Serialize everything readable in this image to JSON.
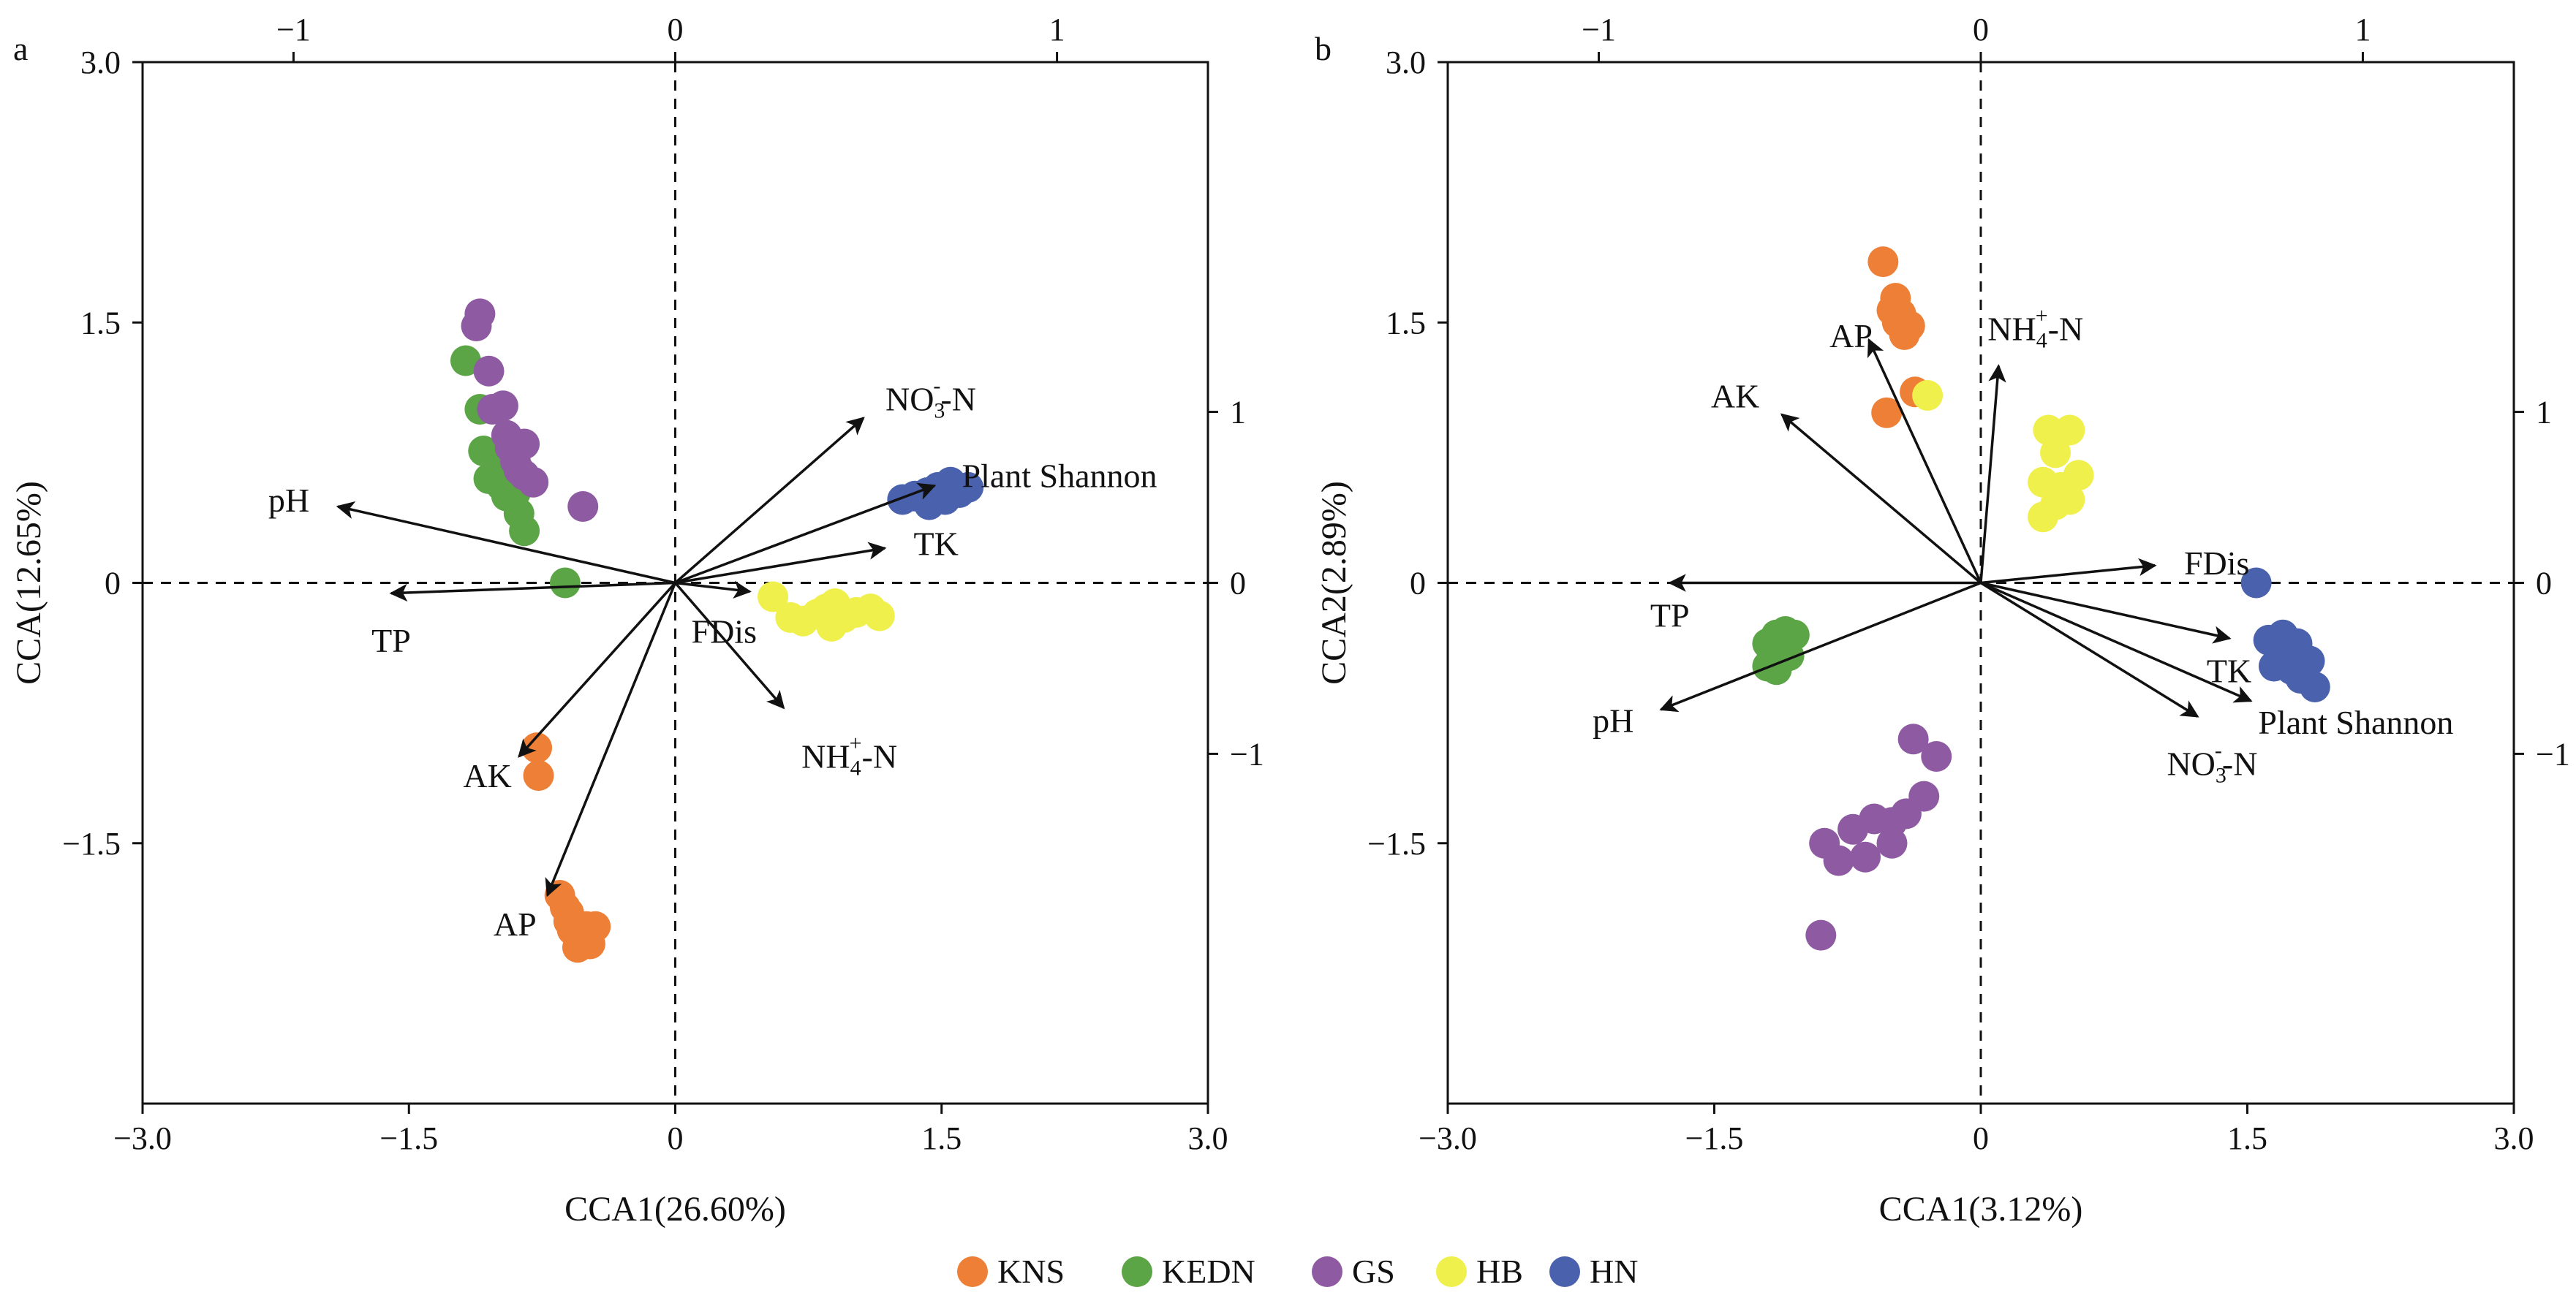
{
  "legend": [
    {
      "label": "KNS",
      "color": "#ee7f36"
    },
    {
      "label": "KEDN",
      "color": "#5ba546"
    },
    {
      "label": "GS",
      "color": "#8e5ba2"
    },
    {
      "label": "HB",
      "color": "#f0f04c"
    },
    {
      "label": "HN",
      "color": "#4a62ad"
    }
  ],
  "chart_data": [
    {
      "panel_label": "a",
      "type": "scatter",
      "xlabel": "CCA1(26.60%)",
      "ylabel": "CCA(12.65%)",
      "xlim": [
        -3.0,
        3.0
      ],
      "ylim": [
        -3.0,
        3.0
      ],
      "xticks": [
        "−3.0",
        "−1.5",
        "0",
        "1.5",
        "3.0"
      ],
      "yticks": [
        "3.0",
        "1.5",
        "0",
        "−1.5"
      ],
      "top_ticks": [
        "−1",
        "0",
        "1"
      ],
      "right_ticks": [
        "1",
        "0",
        "−1"
      ],
      "arrows": [
        {
          "label": "pH",
          "x": -1.9,
          "y": 0.44
        },
        {
          "label": "TP",
          "x": -1.6,
          "y": -0.06
        },
        {
          "label": "AK",
          "x": -0.88,
          "y": -1.0
        },
        {
          "label": "AP",
          "x": -0.72,
          "y": -1.8
        },
        {
          "label": "NO3-N",
          "x": 1.06,
          "y": 0.95
        },
        {
          "label": "Plant Shannon",
          "x": 1.46,
          "y": 0.56
        },
        {
          "label": "TK",
          "x": 1.18,
          "y": 0.2
        },
        {
          "label": "FDis",
          "x": 0.42,
          "y": -0.05
        },
        {
          "label": "NH4-N",
          "x": 0.61,
          "y": -0.72
        }
      ],
      "series": [
        {
          "name": "KNS",
          "points": [
            [
              -0.78,
              -0.95
            ],
            [
              -0.77,
              -1.11
            ],
            [
              -0.65,
              -1.8
            ],
            [
              -0.62,
              -1.87
            ],
            [
              -0.6,
              -1.95
            ],
            [
              -0.58,
              -2.0
            ],
            [
              -0.55,
              -2.03
            ],
            [
              -0.53,
              -2.07
            ],
            [
              -0.6,
              -1.9
            ],
            [
              -0.5,
              -1.98
            ],
            [
              -0.45,
              -1.98
            ],
            [
              -0.48,
              -2.08
            ],
            [
              -0.55,
              -2.1
            ]
          ]
        },
        {
          "name": "KEDN",
          "points": [
            [
              -1.18,
              1.28
            ],
            [
              -1.1,
              1.0
            ],
            [
              -1.08,
              0.76
            ],
            [
              -1.0,
              0.72
            ],
            [
              -1.05,
              0.6
            ],
            [
              -0.98,
              0.56
            ],
            [
              -0.95,
              0.5
            ],
            [
              -0.9,
              0.52
            ],
            [
              -0.88,
              0.4
            ],
            [
              -0.85,
              0.3
            ],
            [
              -0.95,
              0.8
            ],
            [
              -0.62,
              0.0
            ]
          ]
        },
        {
          "name": "GS",
          "points": [
            [
              -1.1,
              1.55
            ],
            [
              -1.12,
              1.48
            ],
            [
              -1.05,
              1.22
            ],
            [
              -1.03,
              1.0
            ],
            [
              -0.97,
              1.02
            ],
            [
              -0.95,
              0.85
            ],
            [
              -0.93,
              0.78
            ],
            [
              -0.85,
              0.8
            ],
            [
              -0.9,
              0.7
            ],
            [
              -0.88,
              0.65
            ],
            [
              -0.8,
              0.58
            ],
            [
              -0.85,
              0.62
            ],
            [
              -0.52,
              0.44
            ]
          ]
        },
        {
          "name": "HB",
          "points": [
            [
              0.55,
              -0.08
            ],
            [
              0.65,
              -0.2
            ],
            [
              0.72,
              -0.22
            ],
            [
              0.8,
              -0.18
            ],
            [
              0.9,
              -0.12
            ],
            [
              0.95,
              -0.2
            ],
            [
              1.02,
              -0.17
            ],
            [
              1.1,
              -0.15
            ],
            [
              1.15,
              -0.19
            ],
            [
              0.88,
              -0.25
            ],
            [
              0.85,
              -0.15
            ]
          ]
        },
        {
          "name": "HN",
          "points": [
            [
              1.28,
              0.48
            ],
            [
              1.35,
              0.5
            ],
            [
              1.42,
              0.52
            ],
            [
              1.48,
              0.55
            ],
            [
              1.55,
              0.58
            ],
            [
              1.6,
              0.52
            ],
            [
              1.65,
              0.55
            ],
            [
              1.52,
              0.48
            ],
            [
              1.43,
              0.45
            ]
          ]
        }
      ]
    },
    {
      "panel_label": "b",
      "type": "scatter",
      "xlabel": "CCA1(3.12%)",
      "ylabel": "CCA2(2.89%)",
      "xlim": [
        -3.0,
        3.0
      ],
      "ylim": [
        -3.0,
        3.0
      ],
      "xticks": [
        "−3.0",
        "−1.5",
        "0",
        "1.5",
        "3.0"
      ],
      "yticks": [
        "3.0",
        "1.5",
        "0",
        "−1.5"
      ],
      "top_ticks": [
        "−1",
        "0",
        "1"
      ],
      "right_ticks": [
        "1",
        "0",
        "−1"
      ],
      "arrows": [
        {
          "label": "TP",
          "x": -1.75,
          "y": 0.0
        },
        {
          "label": "pH",
          "x": -1.8,
          "y": -0.73
        },
        {
          "label": "AK",
          "x": -1.12,
          "y": 0.97
        },
        {
          "label": "AP",
          "x": -0.63,
          "y": 1.4
        },
        {
          "label": "NH4-N",
          "x": 0.1,
          "y": 1.25
        },
        {
          "label": "FDis",
          "x": 0.98,
          "y": 0.1
        },
        {
          "label": "TK",
          "x": 1.4,
          "y": -0.32
        },
        {
          "label": "Plant Shannon",
          "x": 1.52,
          "y": -0.68
        },
        {
          "label": "NO3-N",
          "x": 1.22,
          "y": -0.77
        }
      ],
      "series": [
        {
          "name": "KNS",
          "points": [
            [
              -0.55,
              1.85
            ],
            [
              -0.48,
              1.64
            ],
            [
              -0.45,
              1.55
            ],
            [
              -0.4,
              1.48
            ],
            [
              -0.43,
              1.43
            ],
            [
              -0.47,
              1.5
            ],
            [
              -0.5,
              1.57
            ],
            [
              -0.37,
              1.1
            ],
            [
              -0.53,
              0.98
            ]
          ]
        },
        {
          "name": "KEDN",
          "points": [
            [
              -1.2,
              -0.35
            ],
            [
              -1.15,
              -0.3
            ],
            [
              -1.1,
              -0.28
            ],
            [
              -1.05,
              -0.3
            ],
            [
              -1.08,
              -0.42
            ],
            [
              -1.15,
              -0.5
            ],
            [
              -1.2,
              -0.48
            ],
            [
              -1.13,
              -0.38
            ]
          ]
        },
        {
          "name": "GS",
          "points": [
            [
              -0.38,
              -0.9
            ],
            [
              -0.25,
              -1.0
            ],
            [
              -0.32,
              -1.23
            ],
            [
              -0.42,
              -1.33
            ],
            [
              -0.5,
              -1.38
            ],
            [
              -0.6,
              -1.36
            ],
            [
              -0.72,
              -1.42
            ],
            [
              -0.88,
              -1.5
            ],
            [
              -0.8,
              -1.6
            ],
            [
              -0.65,
              -1.58
            ],
            [
              -0.5,
              -1.5
            ],
            [
              -0.9,
              -2.03
            ]
          ]
        },
        {
          "name": "HB",
          "points": [
            [
              -0.3,
              1.08
            ],
            [
              0.38,
              0.88
            ],
            [
              0.5,
              0.88
            ],
            [
              0.42,
              0.75
            ],
            [
              0.55,
              0.62
            ],
            [
              0.45,
              0.55
            ],
            [
              0.35,
              0.58
            ],
            [
              0.5,
              0.48
            ],
            [
              0.42,
              0.45
            ],
            [
              0.35,
              0.38
            ]
          ]
        },
        {
          "name": "HN",
          "points": [
            [
              1.55,
              0.0
            ],
            [
              1.62,
              -0.33
            ],
            [
              1.7,
              -0.3
            ],
            [
              1.78,
              -0.35
            ],
            [
              1.85,
              -0.45
            ],
            [
              1.72,
              -0.42
            ],
            [
              1.65,
              -0.48
            ],
            [
              1.8,
              -0.55
            ],
            [
              1.88,
              -0.6
            ],
            [
              1.75,
              -0.5
            ]
          ]
        }
      ]
    }
  ]
}
